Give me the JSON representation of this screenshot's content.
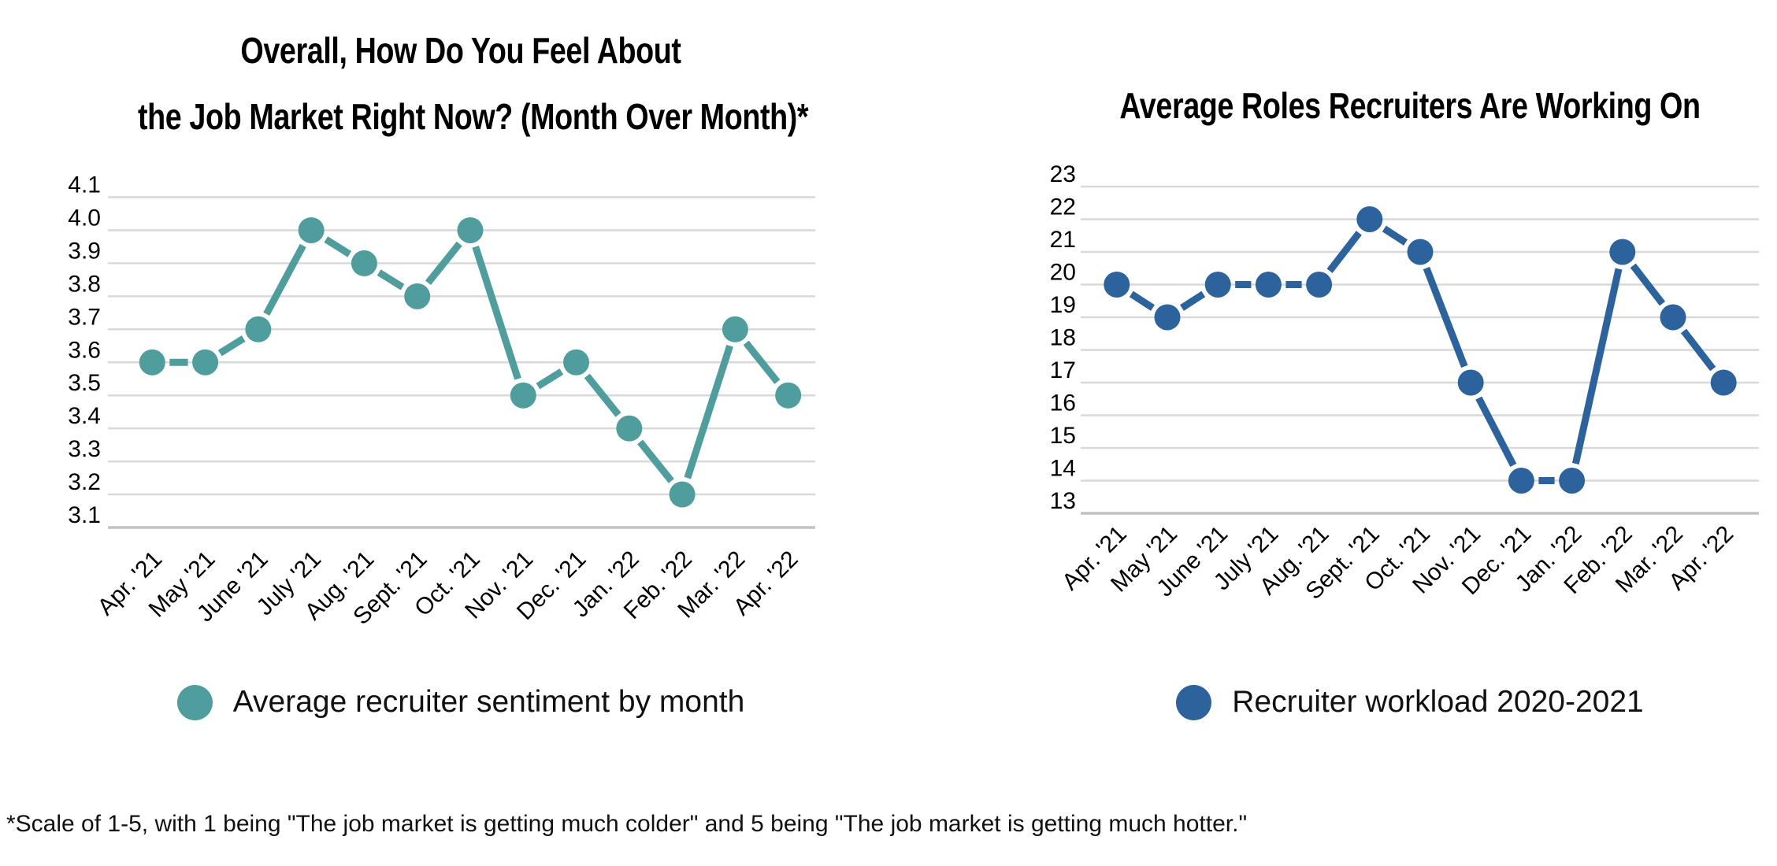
{
  "chart_data": [
    {
      "type": "line",
      "title_lines": [
        "Overall, How Do You Feel About",
        "the Job Market Right Now? (Month Over Month)*"
      ],
      "legend": "Average recruiter sentiment by month",
      "legend_position": "bottom",
      "series_color": "#4f9d9d",
      "categories": [
        "Apr. '21",
        "May '21",
        "June '21",
        "July '21",
        "Aug. '21",
        "Sept. '21",
        "Oct. '21",
        "Nov. '21",
        "Dec. '21",
        "Jan. '22",
        "Feb. '22",
        "Mar. '22",
        "Apr. '22"
      ],
      "values": [
        3.6,
        3.6,
        3.7,
        4.0,
        3.9,
        3.8,
        4.0,
        3.5,
        3.6,
        3.4,
        3.2,
        3.7,
        3.5
      ],
      "y_ticks": [
        "4.1",
        "4.0",
        "3.9",
        "3.8",
        "3.7",
        "3.6",
        "3.5",
        "3.4",
        "3.3",
        "3.2",
        "3.1"
      ],
      "ylim": [
        3.1,
        4.1
      ],
      "y_step": 0.1,
      "grid": true,
      "xlabel": "",
      "ylabel": ""
    },
    {
      "type": "line",
      "title_lines": [
        "Average Roles Recruiters Are Working On"
      ],
      "legend": "Recruiter workload 2020-2021",
      "legend_position": "bottom",
      "series_color": "#2d639c",
      "categories": [
        "Apr. '21",
        "May '21",
        "June '21",
        "July '21",
        "Aug. '21",
        "Sept. '21",
        "Oct. '21",
        "Nov. '21",
        "Dec. '21",
        "Jan. '22",
        "Feb. '22",
        "Mar. '22",
        "Apr. '22"
      ],
      "values": [
        20,
        19,
        20,
        20,
        20,
        22,
        21,
        17,
        14,
        14,
        21,
        19,
        17
      ],
      "y_ticks": [
        "23",
        "22",
        "21",
        "20",
        "19",
        "18",
        "17",
        "16",
        "15",
        "14",
        "13"
      ],
      "ylim": [
        13,
        23
      ],
      "y_step": 1,
      "grid": true,
      "xlabel": "",
      "ylabel": ""
    }
  ],
  "footnote": "*Scale of 1-5, with 1 being \"The job market is getting much colder\" and 5 being \"The job market is getting much hotter.\"",
  "colors": {
    "gridline": "#d9d9d9",
    "axis_bottom_line": "#c2c2c2",
    "tick_text": "#000000",
    "title_text": "#000000",
    "legend_text": "#111111"
  }
}
